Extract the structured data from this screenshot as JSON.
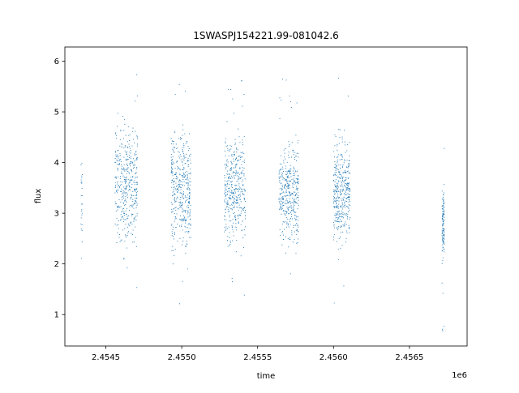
{
  "chart_data": {
    "type": "scatter",
    "title": "1SWASPJ154221.99-081042.6",
    "xlabel": "time",
    "ylabel": "flux",
    "x_offset_label": "1e6",
    "xlim": [
      2454230,
      2456880
    ],
    "ylim": [
      0.38,
      6.28
    ],
    "x_ticks": [
      2454500,
      2455000,
      2455500,
      2456000,
      2456500
    ],
    "x_tick_labels": [
      "2.4545",
      "2.4550",
      "2.4555",
      "2.4560",
      "2.4565"
    ],
    "y_ticks": [
      1,
      2,
      3,
      4,
      5,
      6
    ],
    "y_tick_labels": [
      "1",
      "2",
      "3",
      "4",
      "5",
      "6"
    ],
    "grid": false,
    "marker_color": "#1f77b4",
    "season_clusters": [
      {
        "x_start": 2454335,
        "x_end": 2454345,
        "y_center": 3.25,
        "y_spread": 0.35,
        "n_points": 25
      },
      {
        "x_start": 2454560,
        "x_end": 2454710,
        "y_center": 3.55,
        "y_spread": 0.55,
        "n_points": 420
      },
      {
        "x_start": 2454930,
        "x_end": 2455060,
        "y_center": 3.5,
        "y_spread": 0.55,
        "n_points": 420
      },
      {
        "x_start": 2455280,
        "x_end": 2455420,
        "y_center": 3.45,
        "y_spread": 0.5,
        "n_points": 420
      },
      {
        "x_start": 2455640,
        "x_end": 2455770,
        "y_center": 3.4,
        "y_spread": 0.45,
        "n_points": 400
      },
      {
        "x_start": 2456000,
        "x_end": 2456110,
        "y_center": 3.4,
        "y_spread": 0.45,
        "n_points": 400
      },
      {
        "x_start": 2456715,
        "x_end": 2456730,
        "y_center": 2.75,
        "y_spread": 0.35,
        "n_points": 120
      }
    ]
  }
}
